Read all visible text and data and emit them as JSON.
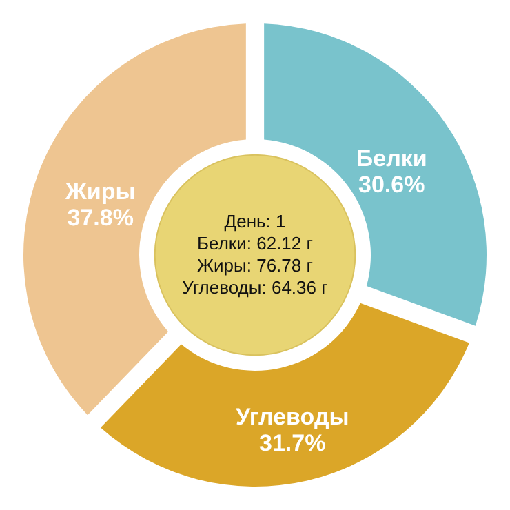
{
  "chart_data": {
    "type": "donut",
    "categories": [
      "Белки",
      "Углеводы",
      "Жиры"
    ],
    "values": [
      30.6,
      31.7,
      37.8
    ],
    "colors": [
      "#79c3cc",
      "#dba628",
      "#eec591"
    ],
    "value_labels": [
      "30.6%",
      "31.7%",
      "37.8%"
    ],
    "annotations": [
      "День: 1",
      "Белки: 62.12 г",
      "Жиры: 76.78 г",
      "Углеводы: 64.36 г"
    ],
    "legend": false
  }
}
